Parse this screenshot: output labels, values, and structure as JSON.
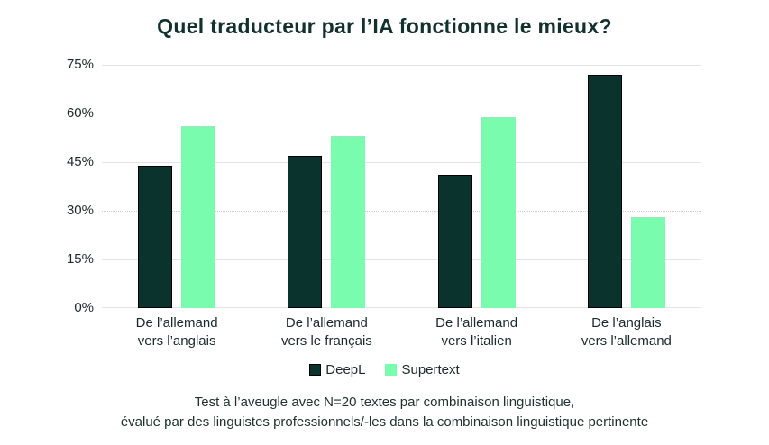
{
  "title": "Quel traducteur par l’IA fonctionne le mieux?",
  "chart_data": {
    "type": "bar",
    "title": "Quel traducteur par l’IA fonctionne le mieux?",
    "categories": [
      "De l’allemand vers l’anglais",
      "De l’allemand vers le français",
      "De l’allemand vers l’italien",
      "De l’anglais vers l’allemand"
    ],
    "categories_lines": [
      [
        "De l’allemand",
        "vers l’anglais"
      ],
      [
        "De l’allemand",
        "vers le français"
      ],
      [
        "De l’allemand",
        "vers l’italien"
      ],
      [
        "De l’anglais",
        "vers l’allemand"
      ]
    ],
    "series": [
      {
        "name": "DeepL",
        "color": "#0a332e",
        "values": [
          44,
          47,
          41,
          72
        ]
      },
      {
        "name": "Supertext",
        "color": "#79fcae",
        "values": [
          56,
          53,
          59,
          28
        ]
      }
    ],
    "ylim": [
      0,
      75
    ],
    "yticks": [
      0,
      15,
      30,
      45,
      60,
      75
    ],
    "ytick_suffix": "%",
    "dotted_gridline_at": 30,
    "xlabel": "",
    "ylabel": "",
    "grid": "horizontal",
    "legend_position": "bottom"
  },
  "legend": {
    "items": [
      {
        "label": "DeepL",
        "color": "#0a332e"
      },
      {
        "label": "Supertext",
        "color": "#79fcae"
      }
    ]
  },
  "footnote": {
    "line1": "Test à l’aveugle avec N=20 textes par combinaison linguistique,",
    "line2": "évalué par des linguistes professionnels/-les dans la combinaison linguistique pertinente"
  }
}
